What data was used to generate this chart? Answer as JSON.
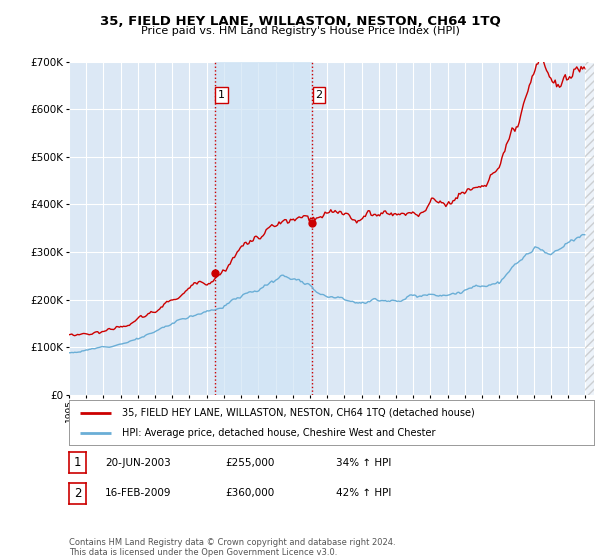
{
  "title": "35, FIELD HEY LANE, WILLASTON, NESTON, CH64 1TQ",
  "subtitle": "Price paid vs. HM Land Registry's House Price Index (HPI)",
  "background_color": "#ffffff",
  "plot_bg_color": "#dce8f5",
  "grid_color": "#ffffff",
  "hpi_line_color": "#6aaed6",
  "price_line_color": "#cc0000",
  "shade_color": "#d0e4f5",
  "sale1_x": 2003.47,
  "sale1_price": 255000,
  "sale2_x": 2009.12,
  "sale2_price": 360000,
  "vline_color": "#cc0000",
  "marker_color": "#cc0000",
  "legend_line1": "35, FIELD HEY LANE, WILLASTON, NESTON, CH64 1TQ (detached house)",
  "legend_line2": "HPI: Average price, detached house, Cheshire West and Chester",
  "table_row1": [
    "1",
    "20-JUN-2003",
    "£255,000",
    "34% ↑ HPI"
  ],
  "table_row2": [
    "2",
    "16-FEB-2009",
    "£360,000",
    "42% ↑ HPI"
  ],
  "footer": "Contains HM Land Registry data © Crown copyright and database right 2024.\nThis data is licensed under the Open Government Licence v3.0.",
  "xmin": 1995.0,
  "xmax": 2025.5,
  "ymin": 0,
  "ymax": 700000,
  "yticks": [
    0,
    100000,
    200000,
    300000,
    400000,
    500000,
    600000,
    700000
  ],
  "ytick_labels": [
    "£0",
    "£100K",
    "£200K",
    "£300K",
    "£400K",
    "£500K",
    "£600K",
    "£700K"
  ]
}
